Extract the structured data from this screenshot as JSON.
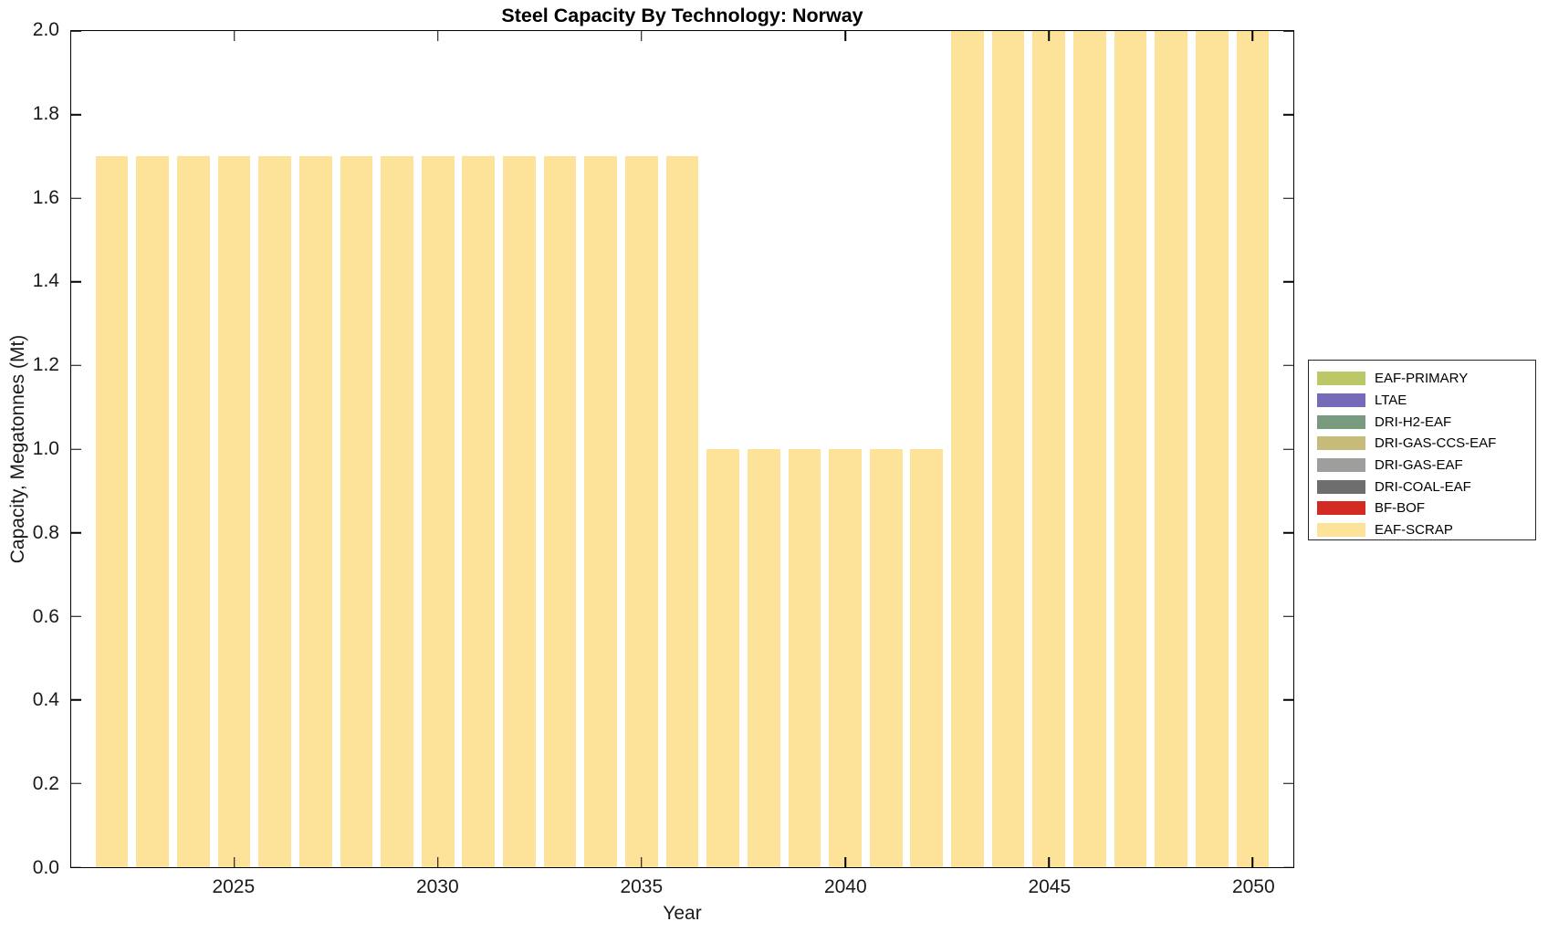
{
  "title": "Steel Capacity By Technology: Norway",
  "axes": {
    "xlabel": "Year",
    "ylabel": "Capacity, Megatonnes (Mt)",
    "x_ticks": [
      {
        "v": 2025,
        "label": "2025"
      },
      {
        "v": 2030,
        "label": "2030"
      },
      {
        "v": 2035,
        "label": "2035"
      },
      {
        "v": 2040,
        "label": "2040"
      },
      {
        "v": 2045,
        "label": "2045"
      },
      {
        "v": 2050,
        "label": "2050"
      }
    ],
    "y_ticks": [
      {
        "v": 0.0,
        "label": "0.0"
      },
      {
        "v": 0.2,
        "label": "0.2"
      },
      {
        "v": 0.4,
        "label": "0.4"
      },
      {
        "v": 0.6,
        "label": "0.6"
      },
      {
        "v": 0.8,
        "label": "0.8"
      },
      {
        "v": 1.0,
        "label": "1.0"
      },
      {
        "v": 1.2,
        "label": "1.2"
      },
      {
        "v": 1.4,
        "label": "1.4"
      },
      {
        "v": 1.6,
        "label": "1.6"
      },
      {
        "v": 1.8,
        "label": "1.8"
      },
      {
        "v": 2.0,
        "label": "2.0"
      }
    ]
  },
  "legend": {
    "position": "right-outside",
    "entries": [
      {
        "label": "EAF-PRIMARY",
        "color": "#BCC867"
      },
      {
        "label": "LTAE",
        "color": "#766BB8"
      },
      {
        "label": "DRI-H2-EAF",
        "color": "#789B80"
      },
      {
        "label": "DRI-GAS-CCS-EAF",
        "color": "#C6BB79"
      },
      {
        "label": "DRI-GAS-EAF",
        "color": "#9E9E9C"
      },
      {
        "label": "DRI-COAL-EAF",
        "color": "#6E6E6E"
      },
      {
        "label": "BF-BOF",
        "color": "#D32B24"
      },
      {
        "label": "EAF-SCRAP",
        "color": "#FDE29A"
      }
    ]
  },
  "chart_data": {
    "type": "bar",
    "stacked": true,
    "title": "Steel Capacity By Technology: Norway",
    "xlabel": "Year",
    "ylabel": "Capacity, Megatonnes (Mt)",
    "xlim": [
      2021,
      2051
    ],
    "ylim": [
      0,
      2
    ],
    "bar_width_years": 0.8,
    "grid": false,
    "x": [
      2022,
      2023,
      2024,
      2025,
      2026,
      2027,
      2028,
      2029,
      2030,
      2031,
      2032,
      2033,
      2034,
      2035,
      2036,
      2037,
      2038,
      2039,
      2040,
      2041,
      2042,
      2043,
      2044,
      2045,
      2046,
      2047,
      2048,
      2049,
      2050
    ],
    "series": [
      {
        "name": "EAF-SCRAP",
        "color": "#FDE29A",
        "values": [
          1.7,
          1.7,
          1.7,
          1.7,
          1.7,
          1.7,
          1.7,
          1.7,
          1.7,
          1.7,
          1.7,
          1.7,
          1.7,
          1.7,
          1.7,
          1.0,
          1.0,
          1.0,
          1.0,
          1.0,
          1.0,
          2.0,
          2.0,
          2.0,
          2.0,
          2.0,
          2.0,
          2.0,
          2.0
        ]
      }
    ]
  }
}
